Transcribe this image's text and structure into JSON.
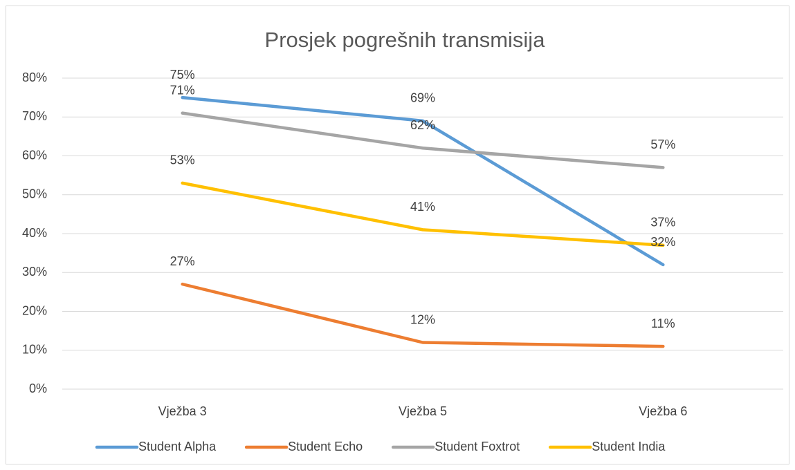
{
  "chart_data": {
    "type": "line",
    "title": "Prosjek pogrešnih transmisija",
    "categories": [
      "Vježba 3",
      "Vježba 5",
      "Vježba 6"
    ],
    "series": [
      {
        "name": "Student Alpha",
        "color": "#5b9bd5",
        "values": [
          75,
          69,
          32
        ],
        "value_labels": [
          "75%",
          "69%",
          "32%"
        ]
      },
      {
        "name": "Student Echo",
        "color": "#ed7d31",
        "values": [
          27,
          12,
          11
        ],
        "value_labels": [
          "27%",
          "12%",
          "11%"
        ]
      },
      {
        "name": "Student Foxtrot",
        "color": "#a5a5a5",
        "values": [
          71,
          62,
          57
        ],
        "value_labels": [
          "71%",
          "62%",
          "57%"
        ]
      },
      {
        "name": "Student India",
        "color": "#ffc000",
        "values": [
          53,
          41,
          37
        ],
        "value_labels": [
          "53%",
          "41%",
          "37%"
        ]
      }
    ],
    "ylim": [
      0,
      80
    ],
    "yticks": [
      {
        "value": 0,
        "label": "0%"
      },
      {
        "value": 10,
        "label": "10%"
      },
      {
        "value": 20,
        "label": "20%"
      },
      {
        "value": 30,
        "label": "30%"
      },
      {
        "value": 40,
        "label": "40%"
      },
      {
        "value": 50,
        "label": "50%"
      },
      {
        "value": 60,
        "label": "60%"
      },
      {
        "value": 70,
        "label": "70%"
      },
      {
        "value": 80,
        "label": "80%"
      }
    ],
    "grid": true,
    "legend": "bottom"
  }
}
